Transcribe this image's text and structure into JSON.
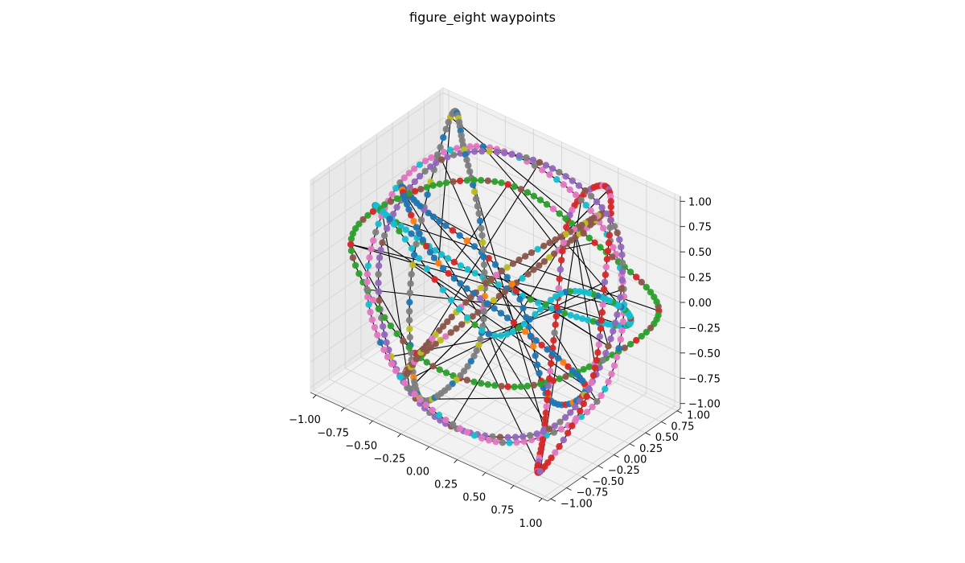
{
  "chart_data": {
    "type": "scatter",
    "subtype": "3d-line-scatter",
    "title": "figure_eight waypoints",
    "xlabel": "",
    "ylabel": "",
    "zlabel": "",
    "xlim": [
      -1.05,
      1.05
    ],
    "ylim": [
      -1.05,
      1.05
    ],
    "zlim": [
      -1.05,
      1.05
    ],
    "x_ticks": [
      "−1.00",
      "−0.75",
      "−0.50",
      "−0.25",
      "0.00",
      "0.25",
      "0.50",
      "0.75",
      "1.00"
    ],
    "y_ticks": [
      "−1.00",
      "−0.75",
      "−0.50",
      "−0.25",
      "0.00",
      "0.25",
      "0.50",
      "0.75",
      "1.00"
    ],
    "z_ticks": [
      "−1.00",
      "−0.75",
      "−0.50",
      "−0.25",
      "0.00",
      "0.25",
      "0.50",
      "0.75",
      "1.00"
    ],
    "x_tick_values": [
      -1,
      -0.75,
      -0.5,
      -0.25,
      0,
      0.25,
      0.5,
      0.75,
      1
    ],
    "y_tick_values": [
      -1,
      -0.75,
      -0.5,
      -0.25,
      0,
      0.25,
      0.5,
      0.75,
      1
    ],
    "z_tick_values": [
      -1,
      -0.75,
      -0.5,
      -0.25,
      0,
      0.25,
      0.5,
      0.75,
      1
    ],
    "grid": true,
    "connecting_line_color": "#000000",
    "marker_colors": [
      "#1f77b4",
      "#ff7f0e",
      "#2ca02c",
      "#d62728",
      "#9467bd",
      "#8c564b",
      "#e377c2",
      "#7f7f7f",
      "#bcbd22",
      "#17becf"
    ],
    "series": [
      {
        "color_index": 4,
        "points": [
          [
            1.0,
            0.0,
            0.0
          ],
          [
            0.8,
            0.5,
            0.8
          ],
          [
            0.0,
            0.7,
            1.0
          ],
          [
            -0.7,
            0.4,
            0.8
          ],
          [
            -1.0,
            0.0,
            0.0
          ],
          [
            -0.7,
            -0.4,
            -0.8
          ],
          [
            0.0,
            -0.7,
            -1.0
          ],
          [
            0.7,
            -0.4,
            -0.8
          ],
          [
            1.0,
            0.0,
            0.0
          ]
        ]
      },
      {
        "color_index": 5,
        "points": [
          [
            0.0,
            1.0,
            0.0
          ],
          [
            0.5,
            0.8,
            0.7
          ],
          [
            0.7,
            0.0,
            1.0
          ],
          [
            0.4,
            -0.7,
            0.7
          ],
          [
            0.0,
            -1.0,
            0.0
          ],
          [
            -0.4,
            -0.7,
            -0.7
          ],
          [
            -0.7,
            0.0,
            -1.0
          ],
          [
            -0.5,
            0.7,
            -0.7
          ],
          [
            0.0,
            1.0,
            0.0
          ]
        ]
      },
      {
        "color_index": 2,
        "points": [
          [
            -1.0,
            -0.5,
            0.2
          ],
          [
            -0.6,
            -0.2,
            0.8
          ],
          [
            0.0,
            0.2,
            1.0
          ],
          [
            0.6,
            0.5,
            0.6
          ],
          [
            1.0,
            0.8,
            0.0
          ],
          [
            0.6,
            0.5,
            -0.6
          ],
          [
            0.0,
            0.2,
            -1.0
          ],
          [
            -0.6,
            -0.2,
            -0.8
          ],
          [
            -1.0,
            -0.5,
            0.2
          ]
        ]
      },
      {
        "color_index": 9,
        "points": [
          [
            0.5,
            -1.0,
            0.3
          ],
          [
            0.9,
            -0.5,
            0.7
          ],
          [
            1.0,
            0.2,
            0.3
          ],
          [
            0.7,
            0.8,
            -0.3
          ],
          [
            0.0,
            1.0,
            -0.6
          ],
          [
            -0.7,
            0.6,
            -0.3
          ],
          [
            -1.0,
            0.0,
            0.3
          ],
          [
            -0.6,
            -0.6,
            0.7
          ],
          [
            0.5,
            -1.0,
            0.3
          ]
        ]
      },
      {
        "color_index": 6,
        "points": [
          [
            -0.2,
            -1.0,
            -0.6
          ],
          [
            0.4,
            -0.6,
            -1.0
          ],
          [
            0.9,
            0.0,
            -0.6
          ],
          [
            0.8,
            0.6,
            0.2
          ],
          [
            0.2,
            1.0,
            0.6
          ],
          [
            -0.5,
            0.7,
            0.9
          ],
          [
            -0.9,
            0.1,
            0.6
          ],
          [
            -0.8,
            -0.6,
            -0.1
          ],
          [
            -0.2,
            -1.0,
            -0.6
          ]
        ]
      },
      {
        "color_index": 3,
        "points": [
          [
            0.9,
            -0.9,
            -0.9
          ],
          [
            1.0,
            -0.3,
            -0.3
          ],
          [
            0.8,
            0.3,
            0.4
          ],
          [
            0.5,
            0.9,
            0.9
          ],
          [
            0.1,
            1.0,
            0.4
          ],
          [
            0.3,
            0.4,
            -0.4
          ],
          [
            0.6,
            -0.3,
            -0.9
          ],
          [
            0.9,
            -0.9,
            -0.9
          ]
        ]
      },
      {
        "color_index": 7,
        "points": [
          [
            -0.9,
            0.9,
            0.9
          ],
          [
            -0.5,
            0.4,
            1.0
          ],
          [
            0.0,
            -0.2,
            0.6
          ],
          [
            0.3,
            -0.8,
            0.0
          ],
          [
            0.0,
            -1.0,
            -0.6
          ],
          [
            -0.5,
            -0.4,
            -0.9
          ],
          [
            -0.9,
            0.3,
            -0.3
          ],
          [
            -0.9,
            0.9,
            0.9
          ]
        ]
      },
      {
        "color_index": 0,
        "points": [
          [
            0.3,
            0.3,
            -1.0
          ],
          [
            0.8,
            0.0,
            -0.5
          ],
          [
            0.6,
            -0.6,
            0.2
          ],
          [
            0.0,
            -0.9,
            0.7
          ],
          [
            -0.6,
            -0.4,
            0.9
          ],
          [
            -0.8,
            0.3,
            0.3
          ],
          [
            -0.3,
            0.8,
            -0.4
          ],
          [
            0.3,
            0.3,
            -1.0
          ]
        ]
      }
    ]
  }
}
